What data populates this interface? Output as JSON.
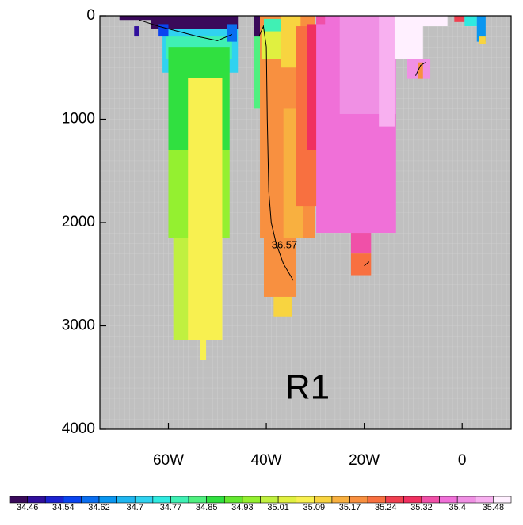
{
  "chart_data": {
    "type": "section",
    "label": "R1",
    "xlim": [
      -74,
      10
    ],
    "xticks": [
      {
        "value": -60,
        "label": "60W"
      },
      {
        "value": -40,
        "label": "40W"
      },
      {
        "value": -20,
        "label": "20W"
      },
      0
    ],
    "ylim": [
      4000,
      0
    ],
    "yticks": [
      0,
      1000,
      2000,
      3000,
      4000
    ],
    "background": "#c0c0c0",
    "colors": [
      "#3a0a5a",
      "#300f9c",
      "#1c22d0",
      "#0a44f0",
      "#0a6ef0",
      "#0a96f0",
      "#20b6f0",
      "#30d2f0",
      "#30eae0",
      "#40f0b4",
      "#50f080",
      "#30e040",
      "#64e830",
      "#94f030",
      "#c0f040",
      "#e0f040",
      "#f8f050",
      "#f8d440",
      "#f8b040",
      "#f89040",
      "#f87040",
      "#f04050",
      "#f03060",
      "#f050a8",
      "#f070d8",
      "#f090e4",
      "#f8b0f0",
      "#fff0ff"
    ],
    "colorbar_labels": [
      "34.46",
      "34.54",
      "34.62",
      "34.7",
      "34.77",
      "34.85",
      "34.93",
      "35.01",
      "35.09",
      "35.17",
      "35.24",
      "35.32",
      "35.4",
      "35.48"
    ],
    "cells": [
      {
        "lon": [
          -61.2,
          -45.8
        ],
        "depth": [
          100,
          550
        ],
        "level": 7
      },
      {
        "lon": [
          -60.5,
          -47
        ],
        "depth": [
          200,
          420
        ],
        "level": 9
      },
      {
        "lon": [
          -60,
          -47.5
        ],
        "depth": [
          300,
          1300
        ],
        "level": 11
      },
      {
        "lon": [
          -60,
          -47.5
        ],
        "depth": [
          1300,
          2150
        ],
        "level": 13
      },
      {
        "lon": [
          -59,
          -50
        ],
        "depth": [
          2150,
          3140
        ],
        "level": 14
      },
      {
        "lon": [
          -56,
          -49
        ],
        "depth": [
          600,
          3140
        ],
        "level": 16
      },
      {
        "lon": [
          -53.6,
          -52.3
        ],
        "depth": [
          3140,
          3330
        ],
        "level": 16
      },
      {
        "lon": [
          -63.6,
          -45.8
        ],
        "depth": [
          0,
          130
        ],
        "level": 0
      },
      {
        "lon": [
          -70,
          -63.6
        ],
        "depth": [
          0,
          40
        ],
        "level": 0
      },
      {
        "lon": [
          -67,
          -66
        ],
        "depth": [
          100,
          200
        ],
        "level": 1
      },
      {
        "lon": [
          -62,
          -60
        ],
        "depth": [
          80,
          200
        ],
        "level": 3
      },
      {
        "lon": [
          -48,
          -46
        ],
        "depth": [
          80,
          250
        ],
        "level": 4
      },
      {
        "lon": [
          -42.5,
          -41
        ],
        "depth": [
          150,
          900
        ],
        "level": 10
      },
      {
        "lon": [
          -42.5,
          -41.3
        ],
        "depth": [
          0,
          200
        ],
        "level": 0
      },
      {
        "lon": [
          -41.3,
          -30
        ],
        "depth": [
          0,
          2150
        ],
        "level": 19
      },
      {
        "lon": [
          -41,
          -36.5
        ],
        "depth": [
          100,
          420
        ],
        "level": 15
      },
      {
        "lon": [
          -40.5,
          -37
        ],
        "depth": [
          30,
          150
        ],
        "level": 9
      },
      {
        "lon": [
          -37,
          -33
        ],
        "depth": [
          0,
          500
        ],
        "level": 17
      },
      {
        "lon": [
          -36.5,
          -32.5
        ],
        "depth": [
          900,
          2150
        ],
        "level": 18
      },
      {
        "lon": [
          -34,
          -28.5
        ],
        "depth": [
          100,
          1840
        ],
        "level": 20
      },
      {
        "lon": [
          -31.6,
          -28.5
        ],
        "depth": [
          80,
          1300
        ],
        "level": 22
      },
      {
        "lon": [
          -40.5,
          -34
        ],
        "depth": [
          2150,
          2720
        ],
        "level": 19
      },
      {
        "lon": [
          -38.5,
          -34.8
        ],
        "depth": [
          2720,
          2910
        ],
        "level": 17
      },
      {
        "lon": [
          -29.8,
          -13.5
        ],
        "depth": [
          0,
          2100
        ],
        "level": 24
      },
      {
        "lon": [
          -25,
          -13.5
        ],
        "depth": [
          0,
          950
        ],
        "level": 25
      },
      {
        "lon": [
          -29.8,
          -28
        ],
        "depth": [
          0,
          80
        ],
        "level": 23
      },
      {
        "lon": [
          -22.7,
          -18.6
        ],
        "depth": [
          2100,
          2300
        ],
        "level": 23
      },
      {
        "lon": [
          -22.7,
          -18.6
        ],
        "depth": [
          2300,
          2510
        ],
        "level": 20
      },
      {
        "lon": [
          -17,
          -13.8
        ],
        "depth": [
          0,
          1070
        ],
        "level": 26
      },
      {
        "lon": [
          -13.8,
          -8
        ],
        "depth": [
          0,
          420
        ],
        "level": 27
      },
      {
        "lon": [
          -13.8,
          -3
        ],
        "depth": [
          0,
          100
        ],
        "level": 27
      },
      {
        "lon": [
          -11.3,
          -6.5
        ],
        "depth": [
          420,
          610
        ],
        "level": 25
      },
      {
        "lon": [
          -9,
          -8
        ],
        "depth": [
          450,
          610
        ],
        "level": 19
      },
      {
        "lon": [
          -1.6,
          0.5
        ],
        "depth": [
          0,
          60
        ],
        "level": 21
      },
      {
        "lon": [
          0.5,
          3
        ],
        "depth": [
          0,
          100
        ],
        "level": 8
      },
      {
        "lon": [
          3,
          4.8
        ],
        "depth": [
          0,
          250
        ],
        "level": 5
      },
      {
        "lon": [
          3.5,
          4.8
        ],
        "depth": [
          200,
          270
        ],
        "level": 17
      }
    ],
    "contour_label": "36.57",
    "contour": {
      "lon": [
        -66,
        -62,
        -58,
        -54,
        -50,
        -47,
        null,
        -41.5,
        -40.6,
        -40,
        -39.8,
        -39.5,
        -39,
        -38,
        -36.5,
        -34.5,
        null,
        -9.5,
        -8.5,
        -7.5,
        null,
        -20,
        -19
      ],
      "depth": [
        40,
        100,
        150,
        200,
        240,
        180,
        null,
        200,
        100,
        300,
        1000,
        1700,
        2000,
        2200,
        2400,
        2560,
        null,
        580,
        480,
        450,
        null,
        2420,
        2380
      ]
    }
  }
}
